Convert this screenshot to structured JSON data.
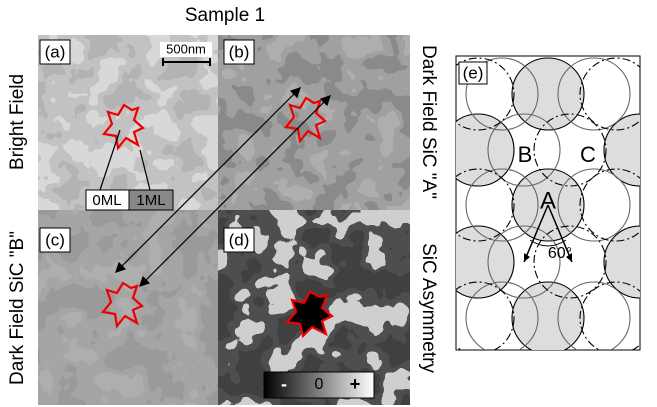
{
  "title": "Sample 1",
  "panels": [
    {
      "label": "(a)",
      "side_label": "Bright Field"
    },
    {
      "label": "(b)",
      "side_label": "Dark Field SiC \"A\""
    },
    {
      "label": "(c)",
      "side_label": "Dark Field SiC \"B\""
    },
    {
      "label": "(d)",
      "side_label": "SiC Asymmetry"
    }
  ],
  "scale_bar": "500nm",
  "annotations": [
    "0ML",
    "1ML"
  ],
  "colorbar": [
    "-",
    "0",
    "+"
  ],
  "diagram": {
    "label": "(e)",
    "regions": [
      "A",
      "B",
      "C"
    ],
    "angle": "60°"
  }
}
